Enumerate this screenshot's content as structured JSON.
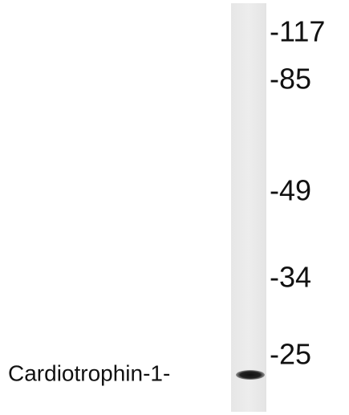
{
  "markers": [
    "-117",
    "-85",
    "-49",
    "-34",
    "-25"
  ],
  "band_label": "Cardiotrophin-1-"
}
